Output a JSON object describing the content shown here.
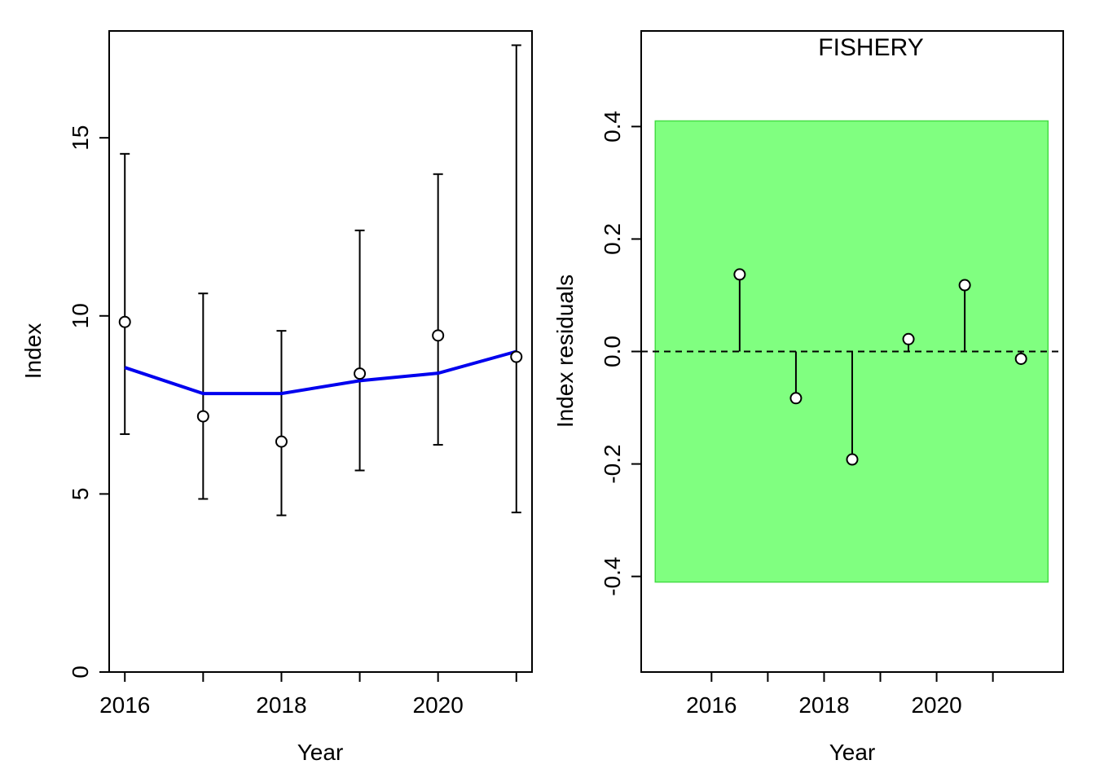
{
  "chart_data": [
    {
      "type": "line",
      "title": "",
      "xlabel": "Year",
      "ylabel": "Index",
      "xlim": [
        2015.8,
        2021.2
      ],
      "ylim": [
        0,
        18.0
      ],
      "xticks": [
        2016,
        2017,
        2018,
        2019,
        2020,
        2021
      ],
      "xtick_labels": [
        "2016",
        "",
        "2018",
        "",
        "2020",
        ""
      ],
      "yticks": [
        0,
        5,
        10,
        15
      ],
      "ytick_labels": [
        "0",
        "5",
        "10",
        "15"
      ],
      "observed": {
        "x": [
          2016,
          2017,
          2018,
          2019,
          2020,
          2021
        ],
        "y": [
          9.83,
          7.18,
          6.47,
          8.38,
          9.45,
          8.85
        ],
        "lower": [
          6.68,
          4.86,
          4.4,
          5.66,
          6.38,
          4.48
        ],
        "upper": [
          14.55,
          10.63,
          9.58,
          12.4,
          13.98,
          17.6
        ]
      },
      "fitted": {
        "x": [
          2016,
          2017,
          2018,
          2019,
          2020,
          2021
        ],
        "y": [
          8.55,
          7.82,
          7.82,
          8.18,
          8.39,
          9.0
        ],
        "color": "#0000ee"
      }
    },
    {
      "type": "scatter",
      "title": "FISHERY",
      "xlabel": "Year",
      "ylabel": "Index residuals",
      "xlim": [
        2014.75,
        2022.25
      ],
      "ylim": [
        -0.57,
        0.57
      ],
      "xticks": [
        2016,
        2017,
        2018,
        2019,
        2020,
        2021
      ],
      "xtick_labels": [
        "2016",
        "",
        "2018",
        "",
        "2020",
        ""
      ],
      "yticks": [
        -0.4,
        -0.2,
        0.0,
        0.2,
        0.4
      ],
      "ytick_labels": [
        "-0.4",
        "-0.2",
        "0.0",
        "0.2",
        "0.4"
      ],
      "band": {
        "y0": -0.41,
        "y1": 0.41,
        "x0": 2015,
        "x1": 2021.98,
        "color": "#80ff80",
        "edge": "#44dd44"
      },
      "zero_line": 0.0,
      "residuals": {
        "x": [
          2016.5,
          2017.5,
          2018.5,
          2019.5,
          2020.5,
          2021.5
        ],
        "y": [
          0.137,
          -0.083,
          -0.192,
          0.022,
          0.118,
          -0.013
        ]
      }
    }
  ]
}
